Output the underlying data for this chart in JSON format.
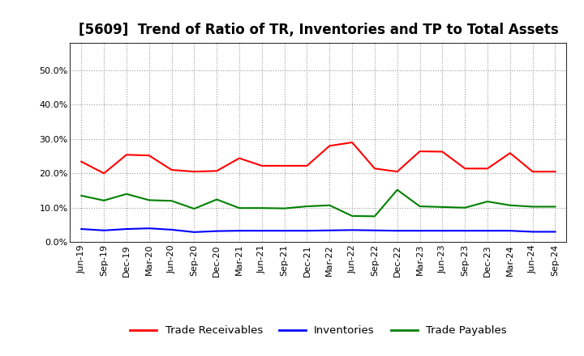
{
  "title": "[5609]  Trend of Ratio of TR, Inventories and TP to Total Assets",
  "x_labels": [
    "Jun-19",
    "Sep-19",
    "Dec-19",
    "Mar-20",
    "Jun-20",
    "Sep-20",
    "Dec-20",
    "Mar-21",
    "Jun-21",
    "Sep-21",
    "Dec-21",
    "Mar-22",
    "Jun-22",
    "Sep-22",
    "Dec-22",
    "Mar-23",
    "Jun-23",
    "Sep-23",
    "Dec-23",
    "Mar-24",
    "Jun-24",
    "Sep-24"
  ],
  "trade_receivables": [
    0.234,
    0.2,
    0.254,
    0.252,
    0.21,
    0.205,
    0.207,
    0.244,
    0.222,
    0.222,
    0.222,
    0.28,
    0.29,
    0.214,
    0.205,
    0.264,
    0.263,
    0.214,
    0.214,
    0.259,
    0.205,
    0.205
  ],
  "inventories": [
    0.038,
    0.034,
    0.038,
    0.04,
    0.036,
    0.029,
    0.032,
    0.033,
    0.033,
    0.033,
    0.033,
    0.034,
    0.035,
    0.034,
    0.033,
    0.033,
    0.033,
    0.033,
    0.033,
    0.033,
    0.03,
    0.03
  ],
  "trade_payables": [
    0.135,
    0.121,
    0.14,
    0.122,
    0.12,
    0.097,
    0.124,
    0.099,
    0.099,
    0.098,
    0.104,
    0.107,
    0.076,
    0.075,
    0.152,
    0.104,
    0.102,
    0.1,
    0.118,
    0.107,
    0.103,
    0.103
  ],
  "ylim": [
    0.0,
    0.58
  ],
  "yticks": [
    0.0,
    0.1,
    0.2,
    0.3,
    0.4,
    0.5
  ],
  "line_colors": {
    "trade_receivables": "#FF0000",
    "inventories": "#0000FF",
    "trade_payables": "#008000"
  },
  "legend_labels": [
    "Trade Receivables",
    "Inventories",
    "Trade Payables"
  ],
  "background_color": "#FFFFFF",
  "plot_bg_color": "#FFFFFF",
  "grid_color": "#999999",
  "title_fontsize": 12,
  "tick_fontsize": 8,
  "legend_fontsize": 9.5
}
